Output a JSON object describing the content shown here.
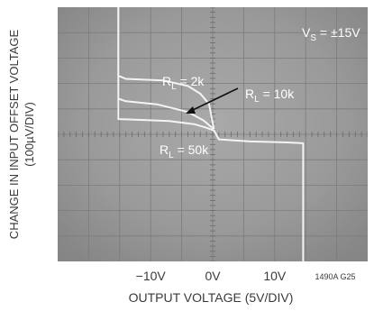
{
  "chart_data": {
    "type": "line",
    "title": "",
    "supply_label": "V",
    "supply_sub": "S",
    "supply_value": " = ±15V",
    "xlabel": "OUTPUT VOLTAGE (5V/DIV)",
    "ylabel_line1": "CHANGE IN INPUT OFFSET VOLTAGE",
    "ylabel_line2": "(100µV/DIV)",
    "x_ticks": [
      {
        "label": "−10V",
        "value": -10
      },
      {
        "label": "0V",
        "value": 0
      },
      {
        "label": "10V",
        "value": 10
      }
    ],
    "xlim": [
      -25,
      25
    ],
    "ylim": [
      -500,
      500
    ],
    "grid": true,
    "figure_id": "1490A G25",
    "series": [
      {
        "name_main": "R",
        "name_sub": "L",
        "name_value": " = 2k",
        "points": [
          [
            -15.2,
            500
          ],
          [
            -15.2,
            230
          ],
          [
            -14,
            218
          ],
          [
            -8,
            212
          ],
          [
            -4,
            190
          ],
          [
            -2,
            160
          ],
          [
            -0.6,
            120
          ],
          [
            0.2,
            20
          ]
        ]
      },
      {
        "name_main": "R",
        "name_sub": "L",
        "name_value": " = 10k",
        "points": [
          [
            -15.2,
            500
          ],
          [
            -15.2,
            140
          ],
          [
            -14,
            130
          ],
          [
            -9,
            118
          ],
          [
            -4,
            88
          ],
          [
            -1.5,
            55
          ],
          [
            0.2,
            20
          ]
        ]
      },
      {
        "name_main": "R",
        "name_sub": "L",
        "name_value": " = 50k",
        "points": [
          [
            -15.2,
            500
          ],
          [
            -15.2,
            60
          ],
          [
            -13,
            58
          ],
          [
            -7,
            52
          ],
          [
            -3,
            40
          ],
          [
            -1,
            26
          ],
          [
            0.2,
            15
          ],
          [
            1,
            -20
          ],
          [
            6,
            -28
          ],
          [
            12,
            -32
          ],
          [
            14.6,
            -35
          ],
          [
            14.6,
            -500
          ]
        ]
      }
    ]
  }
}
